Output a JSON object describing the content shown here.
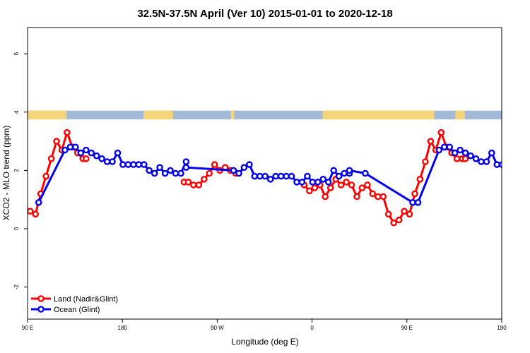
{
  "chart_data": {
    "type": "line",
    "title": "32.5N-37.5N April (Ver 10)   2015-01-01 to 2020-12-18",
    "xlabel": "Longitude (deg E)",
    "ylabel": "XCO2 - MLO trend (ppm)",
    "x_ticks": [
      {
        "value": 90,
        "label": "90 E"
      },
      {
        "value": 180,
        "label": "180"
      },
      {
        "value": 270,
        "label": "90 W"
      },
      {
        "value": 360,
        "label": "0"
      },
      {
        "value": 450,
        "label": "90 E"
      },
      {
        "value": 540,
        "label": "180"
      }
    ],
    "y_ticks": [
      {
        "value": -2,
        "label": "-2"
      },
      {
        "value": 0,
        "label": "0"
      },
      {
        "value": 2,
        "label": "2"
      },
      {
        "value": 4,
        "label": "4"
      },
      {
        "value": 6,
        "label": "6"
      }
    ],
    "xlim": [
      90,
      540
    ],
    "ylim": [
      -3.1,
      6.9
    ],
    "grid": false,
    "legend_position": "bottom-left",
    "land_mask_strip": {
      "y_range": [
        3.75,
        4.05
      ],
      "land_color": "#f5d57a",
      "ocean_color": "#a2b9d8"
    },
    "series": [
      {
        "name": "Land (Nadir&Glint)",
        "color": "#ff0000",
        "segments": [
          {
            "x": [
              92.5,
              97.5,
              102.5,
              107.5,
              112.5,
              117.5,
              122.5,
              127.5,
              132.5,
              137.5,
              142.5,
              145.5
            ],
            "y": [
              0.6,
              0.5,
              1.2,
              1.8,
              2.4,
              3.0,
              2.7,
              3.3,
              2.8,
              2.6,
              2.4,
              2.4
            ]
          },
          {
            "x": [
              238.5,
              242.5,
              247.5,
              252.5,
              257.5,
              262.5,
              267.5,
              272.5,
              277.5,
              282.5,
              287.5
            ],
            "y": [
              1.6,
              1.6,
              1.5,
              1.5,
              1.7,
              1.9,
              2.2,
              2.0,
              2.1,
              2.0,
              1.9
            ]
          },
          {
            "x": [
              352.5,
              357.5,
              362.5,
              367.5,
              372.5,
              377.5,
              382.5,
              387.5,
              392.5,
              397.5,
              402.5,
              407.5,
              412.5,
              417.5,
              422.5,
              427.5,
              432.5,
              437.5,
              442.5,
              447.5,
              452.5,
              457.5,
              462.5,
              467.5,
              472.5,
              477.5,
              482.5,
              487.5,
              492.5,
              497.5,
              502.5,
              505.5
            ],
            "y": [
              1.5,
              1.3,
              1.4,
              1.5,
              1.1,
              1.4,
              1.7,
              1.5,
              1.6,
              1.5,
              1.1,
              1.4,
              1.5,
              1.2,
              1.1,
              1.1,
              0.5,
              0.2,
              0.3,
              0.6,
              0.5,
              1.2,
              1.7,
              2.3,
              3.0,
              2.7,
              3.3,
              2.8,
              2.6,
              2.4,
              2.4,
              2.4
            ]
          }
        ]
      },
      {
        "name": "Ocean (Glint)",
        "color": "#0000ee",
        "segments": [
          {
            "x": [
              100.5,
              125.5,
              130.5,
              135.5,
              140.5,
              145.5,
              150.5,
              155.5,
              160.5,
              165.5,
              170.5,
              175.5,
              180.5,
              185.5,
              190.5,
              195.5,
              200.5,
              205.5,
              210.5,
              215.5,
              220.5,
              225.5,
              230.5,
              235.5,
              240.5
            ],
            "y": [
              0.9,
              2.7,
              2.8,
              2.8,
              2.6,
              2.7,
              2.6,
              2.5,
              2.4,
              2.3,
              2.3,
              2.6,
              2.2,
              2.2,
              2.2,
              2.2,
              2.2,
              2.0,
              1.9,
              2.1,
              1.9,
              2.0,
              1.9,
              1.9,
              2.3
            ]
          },
          {
            "x": [
              240.5,
              285.5,
              290.5,
              295.5,
              300.5,
              305.5,
              310.5,
              315.5,
              320.5,
              325.5,
              330.5,
              335.5,
              340.5,
              345.5,
              350.5,
              355.5,
              360.5,
              365.5,
              370.5,
              375.5,
              380.5,
              385.5,
              390.5,
              395.5
            ],
            "y": [
              2.1,
              2.0,
              1.9,
              2.1,
              2.2,
              1.8,
              1.8,
              1.8,
              1.7,
              1.8,
              1.8,
              1.8,
              1.8,
              1.6,
              1.6,
              1.8,
              1.6,
              1.6,
              1.7,
              1.6,
              2.0,
              1.8,
              1.9,
              1.9
            ]
          },
          {
            "x": [
              395.5,
              410.5,
              455.5,
              460.5,
              480.5,
              485.5,
              490.5,
              495.5,
              500.5,
              505.5,
              510.5,
              515.5,
              520.5,
              525.5,
              530.5,
              535.5,
              540.5
            ],
            "y": [
              2.0,
              1.9,
              0.9,
              0.9,
              2.7,
              2.8,
              2.8,
              2.6,
              2.7,
              2.6,
              2.5,
              2.4,
              2.3,
              2.3,
              2.6,
              2.2,
              2.2
            ]
          }
        ]
      }
    ]
  }
}
